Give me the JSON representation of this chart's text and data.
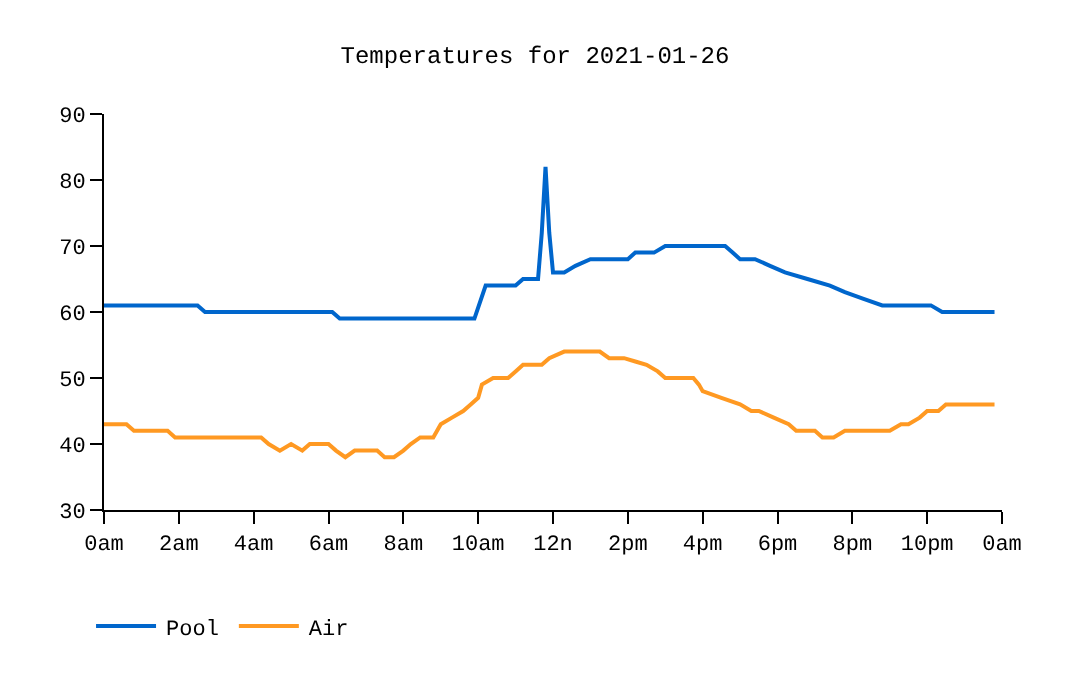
{
  "chart_data": {
    "type": "line",
    "title": "Temperatures for 2021-01-26",
    "xlim": [
      "2021-01-26T00:00",
      "2021-01-27T00:00"
    ],
    "xticks": [
      {
        "value": "2021-01-26T00:00",
        "label": "0am"
      },
      {
        "value": "2021-01-26T02:00",
        "label": "2am"
      },
      {
        "value": "2021-01-26T04:00",
        "label": "4am"
      },
      {
        "value": "2021-01-26T06:00",
        "label": "6am"
      },
      {
        "value": "2021-01-26T08:00",
        "label": "8am"
      },
      {
        "value": "2021-01-26T10:00",
        "label": "10am"
      },
      {
        "value": "2021-01-26T12:00",
        "label": "12n"
      },
      {
        "value": "2021-01-26T14:00",
        "label": "2pm"
      },
      {
        "value": "2021-01-26T16:00",
        "label": "4pm"
      },
      {
        "value": "2021-01-26T18:00",
        "label": "6pm"
      },
      {
        "value": "2021-01-26T20:00",
        "label": "8pm"
      },
      {
        "value": "2021-01-26T22:00",
        "label": "10pm"
      },
      {
        "value": "2021-01-27T00:00",
        "label": "0am"
      }
    ],
    "ylim": [
      30,
      90
    ],
    "yticks": [
      30,
      40,
      50,
      60,
      70,
      80,
      90
    ],
    "legend": "bottom left",
    "marker": "none",
    "line_style": "solid",
    "series": [
      {
        "name": "Pool",
        "color": "#0066cc",
        "x": [
          "2021-01-26T00:00",
          "2021-01-26T02:30",
          "2021-01-26T02:42",
          "2021-01-26T06:06",
          "2021-01-26T06:18",
          "2021-01-26T09:54",
          "2021-01-26T10:12",
          "2021-01-26T11:00",
          "2021-01-26T11:12",
          "2021-01-26T11:36",
          "2021-01-26T11:42",
          "2021-01-26T11:48",
          "2021-01-26T11:54",
          "2021-01-26T12:00",
          "2021-01-26T12:18",
          "2021-01-26T12:36",
          "2021-01-26T13:00",
          "2021-01-26T14:00",
          "2021-01-26T14:12",
          "2021-01-26T14:42",
          "2021-01-26T15:00",
          "2021-01-26T16:36",
          "2021-01-26T16:48",
          "2021-01-26T17:00",
          "2021-01-26T17:24",
          "2021-01-26T17:48",
          "2021-01-26T18:12",
          "2021-01-26T18:48",
          "2021-01-26T19:24",
          "2021-01-26T19:48",
          "2021-01-26T20:18",
          "2021-01-26T20:48",
          "2021-01-26T22:06",
          "2021-01-26T22:24",
          "2021-01-26T23:48"
        ],
        "values": [
          61,
          61,
          60,
          60,
          59,
          59,
          64,
          64,
          65,
          65,
          72,
          82,
          72,
          66,
          66,
          67,
          68,
          68,
          69,
          69,
          70,
          70,
          69,
          68,
          68,
          67,
          66,
          65,
          64,
          63,
          62,
          61,
          61,
          60,
          60
        ]
      },
      {
        "name": "Air",
        "color": "#ff9922",
        "x": [
          "2021-01-26T00:00",
          "2021-01-26T00:36",
          "2021-01-26T00:48",
          "2021-01-26T01:42",
          "2021-01-26T01:54",
          "2021-01-26T04:12",
          "2021-01-26T04:24",
          "2021-01-26T04:42",
          "2021-01-26T05:00",
          "2021-01-26T05:18",
          "2021-01-26T05:30",
          "2021-01-26T06:00",
          "2021-01-26T06:12",
          "2021-01-26T06:27",
          "2021-01-26T06:42",
          "2021-01-26T07:18",
          "2021-01-26T07:30",
          "2021-01-26T07:45",
          "2021-01-26T08:00",
          "2021-01-26T08:12",
          "2021-01-26T08:27",
          "2021-01-26T08:48",
          "2021-01-26T09:00",
          "2021-01-26T09:18",
          "2021-01-26T09:36",
          "2021-01-26T09:48",
          "2021-01-26T10:00",
          "2021-01-26T10:06",
          "2021-01-26T10:24",
          "2021-01-26T10:48",
          "2021-01-26T11:00",
          "2021-01-26T11:12",
          "2021-01-26T11:42",
          "2021-01-26T11:54",
          "2021-01-26T12:18",
          "2021-01-26T13:15",
          "2021-01-26T13:30",
          "2021-01-26T13:54",
          "2021-01-26T14:12",
          "2021-01-26T14:30",
          "2021-01-26T14:48",
          "2021-01-26T15:00",
          "2021-01-26T15:45",
          "2021-01-26T15:54",
          "2021-01-26T16:00",
          "2021-01-26T16:30",
          "2021-01-26T17:00",
          "2021-01-26T17:18",
          "2021-01-26T17:30",
          "2021-01-26T17:54",
          "2021-01-26T18:18",
          "2021-01-26T18:30",
          "2021-01-26T19:00",
          "2021-01-26T19:12",
          "2021-01-26T19:30",
          "2021-01-26T19:48",
          "2021-01-26T21:00",
          "2021-01-26T21:18",
          "2021-01-26T21:30",
          "2021-01-26T21:48",
          "2021-01-26T22:00",
          "2021-01-26T22:18",
          "2021-01-26T22:30",
          "2021-01-26T23:48"
        ],
        "values": [
          43,
          43,
          42,
          42,
          41,
          41,
          40,
          39,
          40,
          39,
          40,
          40,
          39,
          38,
          39,
          39,
          38,
          38,
          39,
          40,
          41,
          41,
          43,
          44,
          45,
          46,
          47,
          49,
          50,
          50,
          51,
          52,
          52,
          53,
          54,
          54,
          53,
          53,
          52.5,
          52,
          51,
          50,
          50,
          49,
          48,
          47,
          46,
          45,
          45,
          44,
          43,
          42,
          42,
          41,
          41,
          42,
          42,
          43,
          43,
          44,
          45,
          45,
          46,
          46
        ]
      }
    ]
  }
}
